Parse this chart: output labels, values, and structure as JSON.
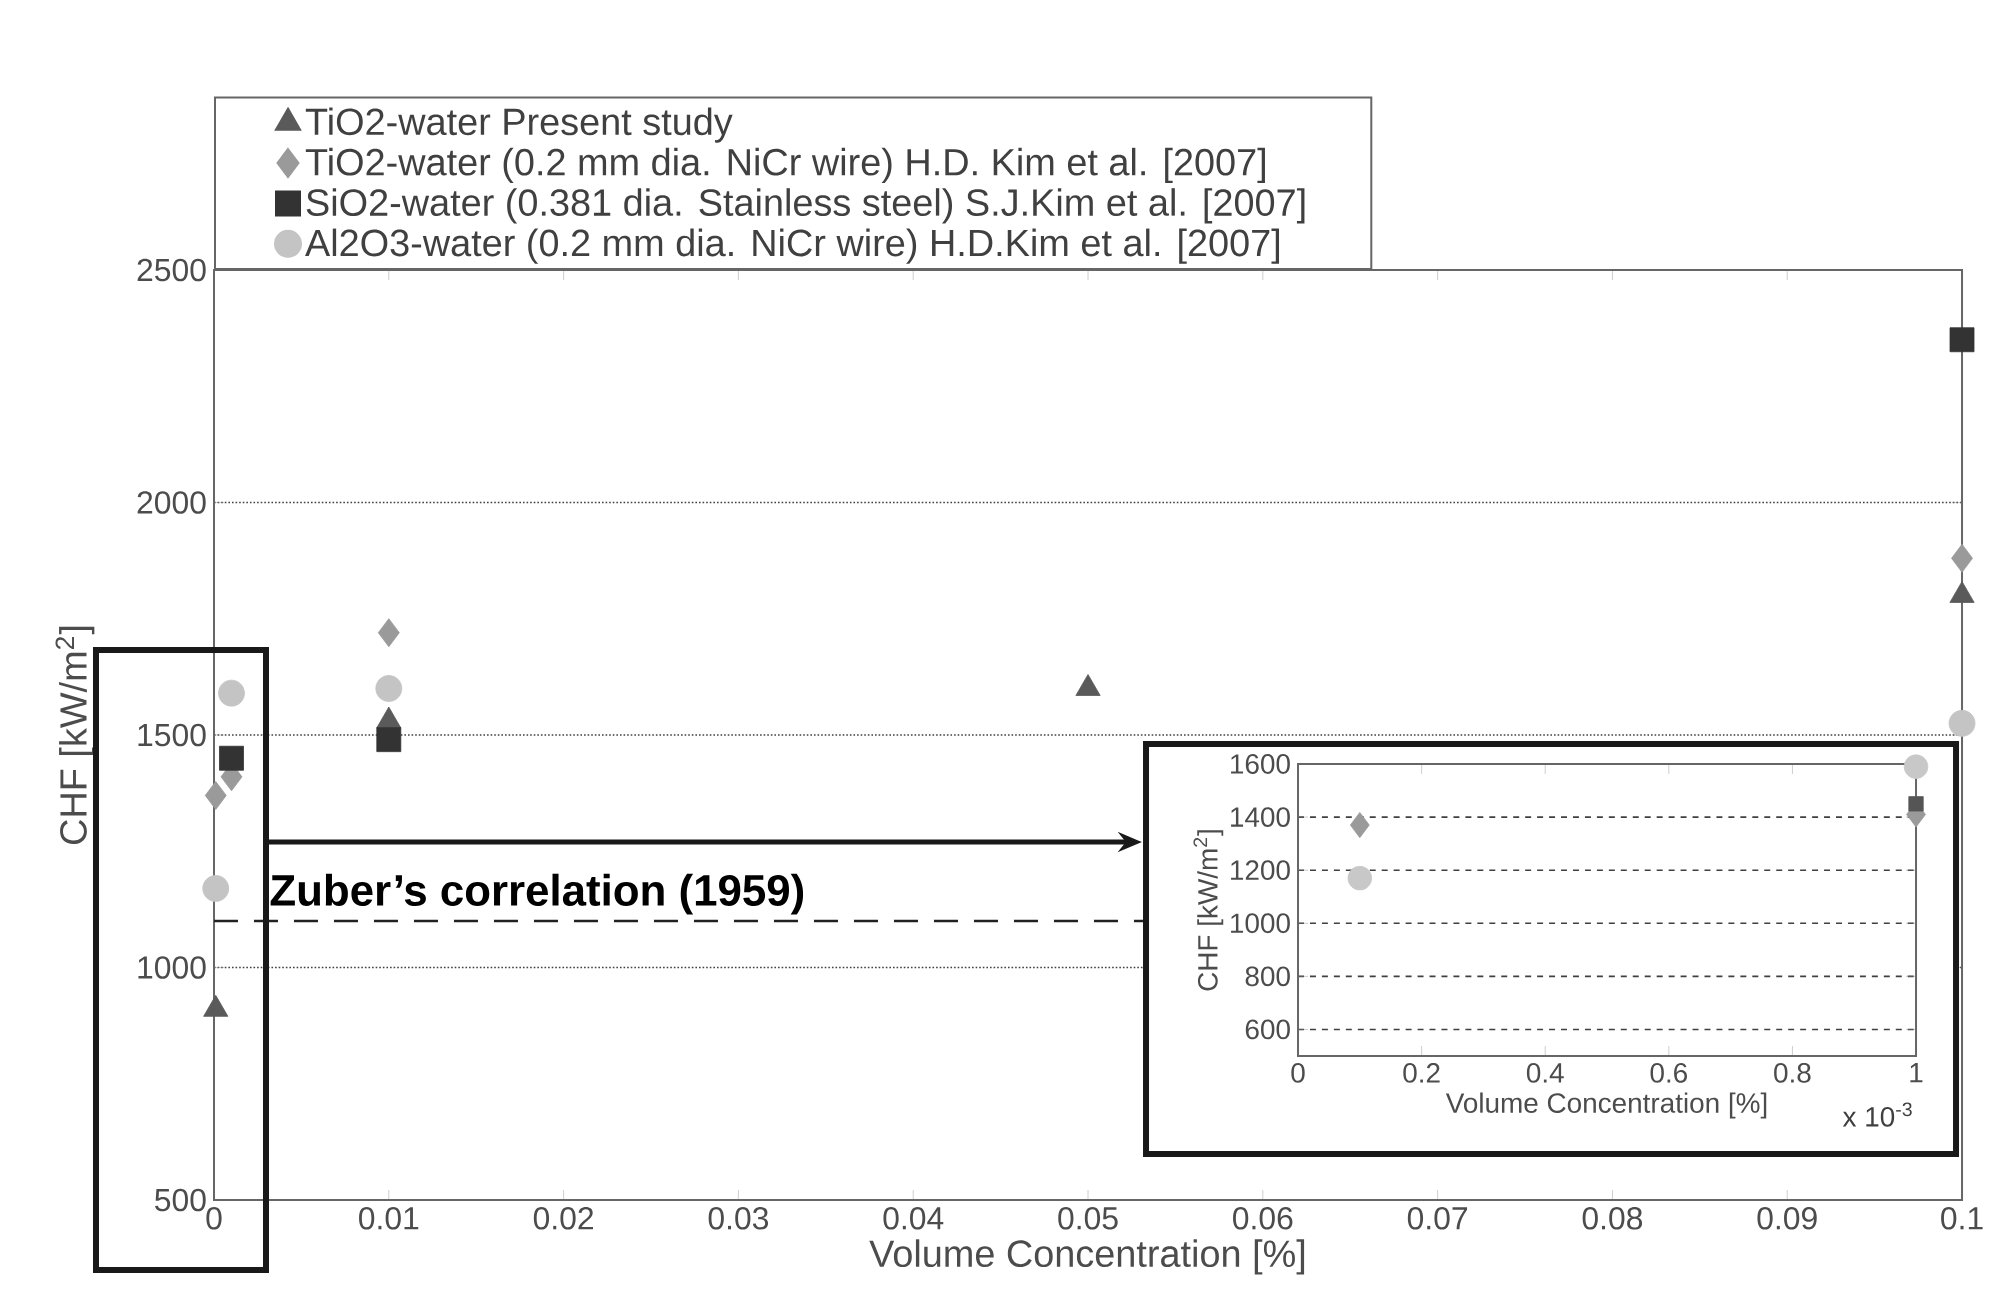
{
  "chart_data": [
    {
      "type": "scatter",
      "xlabel": "Volume Concentration [%]",
      "ylabel": "CHF [kW/m$^{2}$]",
      "xlim": [
        0,
        0.1
      ],
      "ylim": [
        500,
        2500
      ],
      "xticks": [
        0,
        0.01,
        0.02,
        0.03,
        0.04,
        0.05,
        0.06,
        0.07,
        0.08,
        0.09,
        0.1
      ],
      "yticks": [
        500,
        1000,
        1500,
        2000,
        2500
      ],
      "grid": "y",
      "legend": "top",
      "ref_lines": [
        {
          "axis": "y",
          "value": 1100,
          "label": "Zuber’s correlation (1959)",
          "color": "#222222",
          "line_style": "dashed"
        }
      ],
      "series": [
        {
          "name": "TiO2-water Present study",
          "color": "#5a5a5a",
          "marker": "triangle",
          "x": [
            0.0001,
            0.01,
            0.05,
            0.1
          ],
          "values": [
            910,
            1530,
            1600,
            1800
          ]
        },
        {
          "name": "TiO2-water (0.2 mm dia. NiCr wire) H.D. Kim et al. [2007]",
          "color": "#9a9a9a",
          "marker": "diamond",
          "x": [
            0.0001,
            0.001,
            0.01,
            0.1
          ],
          "values": [
            1370,
            1410,
            1720,
            1880
          ]
        },
        {
          "name": "SiO2-water (0.381 dia. Stainless steel) S.J.Kim et al. [2007]",
          "color": "#333333",
          "marker": "square",
          "x": [
            0.001,
            0.01,
            0.1
          ],
          "values": [
            1450,
            1490,
            2350
          ]
        },
        {
          "name": "Al2O3-water (0.2 mm dia. NiCr wire) H.D.Kim et al. [2007]",
          "color": "#c4c4c4",
          "marker": "circle",
          "x": [
            0.0001,
            0.001,
            0.01,
            0.1
          ],
          "values": [
            1170,
            1590,
            1600,
            1525
          ]
        }
      ]
    },
    {
      "type": "scatter",
      "xlabel": "Volume Concentration [%]",
      "ylabel": "CHF [kW/m$^{2}$]",
      "xlim": [
        0,
        1
      ],
      "ylim": [
        500,
        1600
      ],
      "xticks": [
        0,
        0.2,
        0.4,
        0.6,
        0.8,
        1
      ],
      "yticks": [
        600,
        800,
        1000,
        1200,
        1400,
        1600
      ],
      "grid": "y",
      "annotations": [
        "x 10$^{-3}$"
      ],
      "series": [
        {
          "color": "#9a9a9a",
          "marker": "diamond",
          "x": [
            0.1,
            1
          ],
          "values": [
            1370,
            1410
          ]
        },
        {
          "color": "#555555",
          "marker": "square",
          "x": [
            1
          ],
          "values": [
            1450
          ]
        },
        {
          "color": "#c8c8c8",
          "marker": "circle",
          "x": [
            0.1,
            1
          ],
          "values": [
            1170,
            1590
          ]
        }
      ]
    }
  ]
}
